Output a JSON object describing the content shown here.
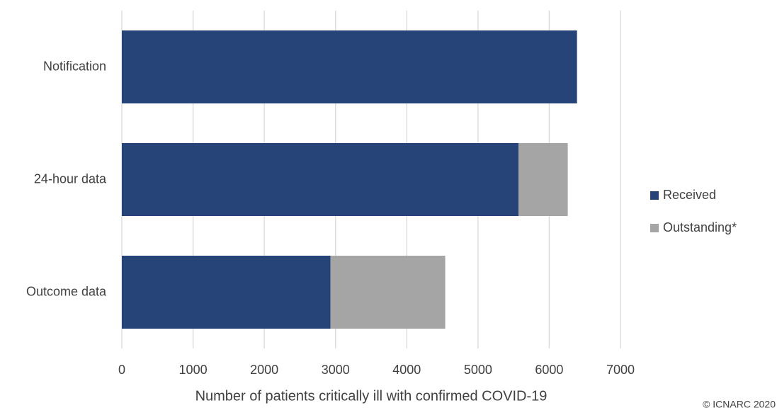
{
  "chart_data": {
    "type": "bar",
    "orientation": "horizontal",
    "stacked": true,
    "categories": [
      "Notification",
      "24-hour data",
      "Outcome data"
    ],
    "series": [
      {
        "name": "Received",
        "color": "#264478",
        "values": [
          6390,
          5570,
          2930
        ]
      },
      {
        "name": "Outstanding*",
        "color": "#a5a5a5",
        "values": [
          0,
          690,
          1610
        ]
      }
    ],
    "xlabel": "Number of patients critically ill with confirmed COVID-19",
    "xlim": [
      0,
      7000
    ],
    "xticks": [
      0,
      1000,
      2000,
      3000,
      4000,
      5000,
      6000,
      7000
    ],
    "grid": true,
    "legend": "right",
    "footnote": "© ICNARC 2020"
  }
}
